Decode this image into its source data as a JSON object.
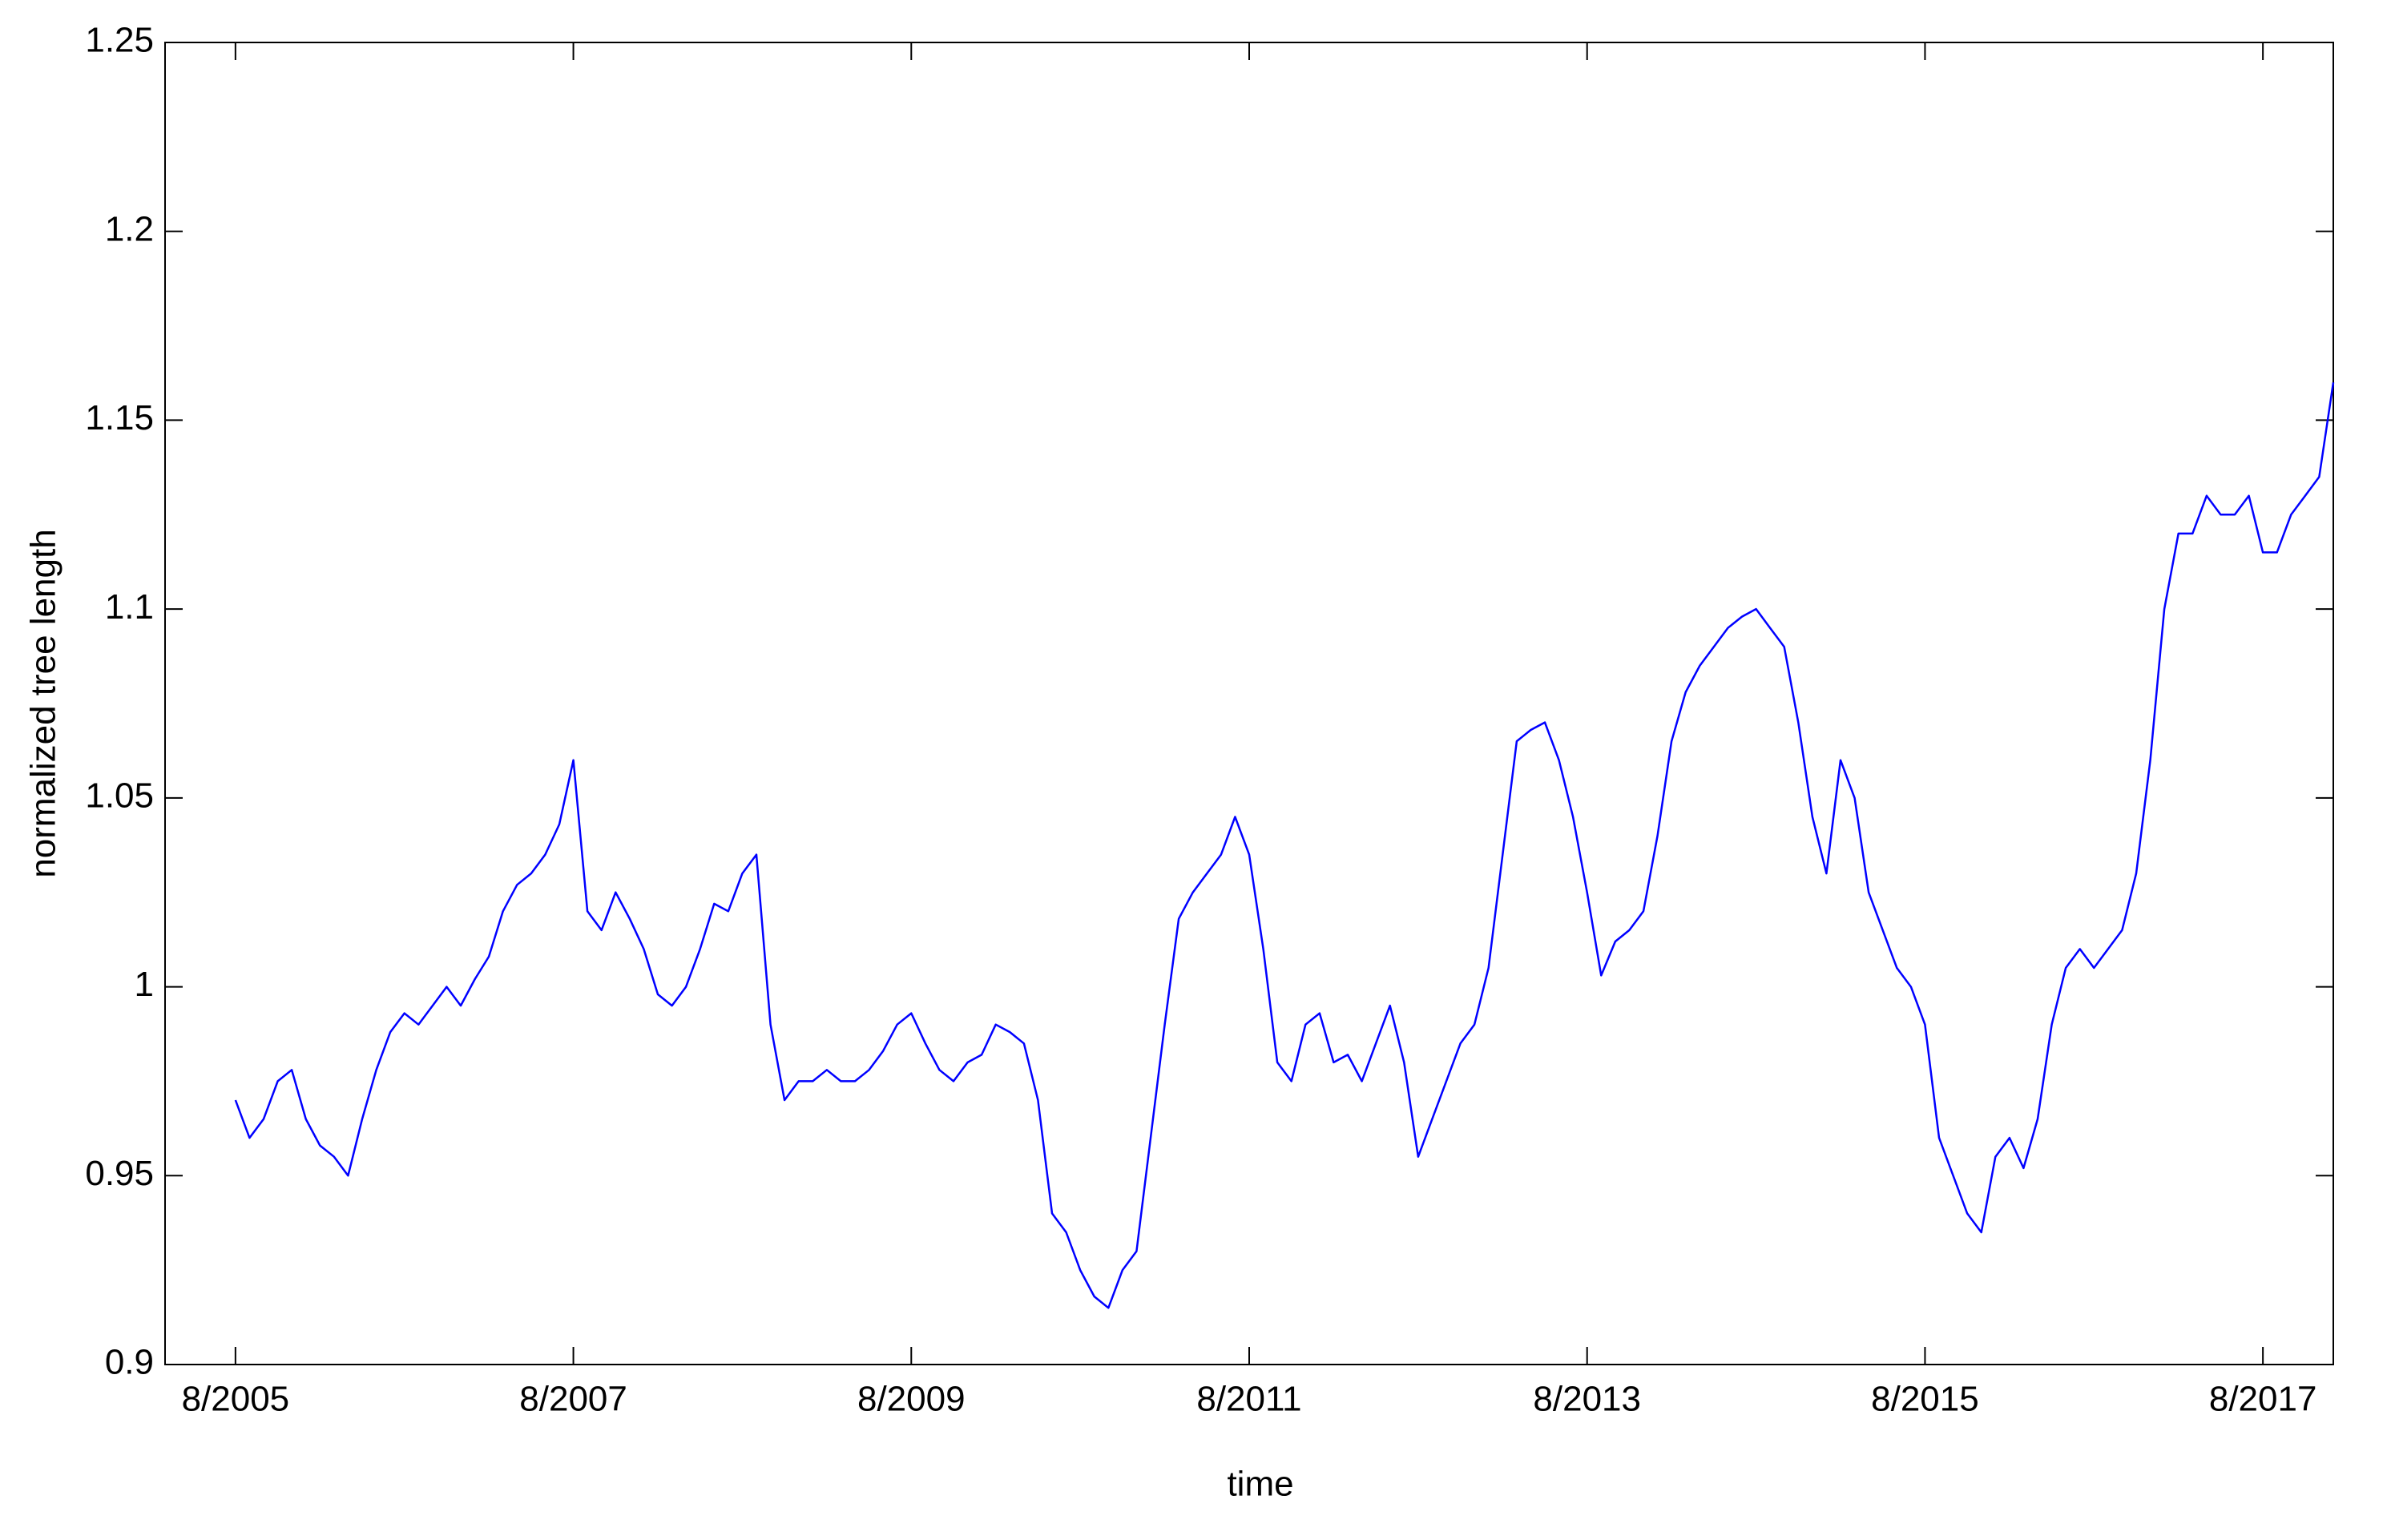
{
  "chart_data": {
    "type": "line",
    "xlabel": "time",
    "ylabel": "normalized tree length",
    "x": [
      "8/2005",
      "9/2005",
      "10/2005",
      "11/2005",
      "12/2005",
      "1/2006",
      "2/2006",
      "3/2006",
      "4/2006",
      "5/2006",
      "6/2006",
      "7/2006",
      "8/2006",
      "9/2006",
      "10/2006",
      "11/2006",
      "12/2006",
      "1/2007",
      "2/2007",
      "3/2007",
      "4/2007",
      "5/2007",
      "6/2007",
      "7/2007",
      "8/2007",
      "9/2007",
      "10/2007",
      "11/2007",
      "12/2007",
      "1/2008",
      "2/2008",
      "3/2008",
      "4/2008",
      "5/2008",
      "6/2008",
      "7/2008",
      "8/2008",
      "9/2008",
      "10/2008",
      "11/2008",
      "12/2008",
      "1/2009",
      "2/2009",
      "3/2009",
      "4/2009",
      "5/2009",
      "6/2009",
      "7/2009",
      "8/2009",
      "9/2009",
      "10/2009",
      "11/2009",
      "12/2009",
      "1/2010",
      "2/2010",
      "3/2010",
      "4/2010",
      "5/2010",
      "6/2010",
      "7/2010",
      "8/2010",
      "9/2010",
      "10/2010",
      "11/2010",
      "12/2010",
      "1/2011",
      "2/2011",
      "3/2011",
      "4/2011",
      "5/2011",
      "6/2011",
      "7/2011",
      "8/2011",
      "9/2011",
      "10/2011",
      "11/2011",
      "12/2011",
      "1/2012",
      "2/2012",
      "3/2012",
      "4/2012",
      "5/2012",
      "6/2012",
      "7/2012",
      "8/2012",
      "9/2012",
      "10/2012",
      "11/2012",
      "12/2012",
      "1/2013",
      "2/2013",
      "3/2013",
      "4/2013",
      "5/2013",
      "6/2013",
      "7/2013",
      "8/2013",
      "9/2013",
      "10/2013",
      "11/2013",
      "12/2013",
      "1/2014",
      "2/2014",
      "3/2014",
      "4/2014",
      "5/2014",
      "6/2014",
      "7/2014",
      "8/2014",
      "9/2014",
      "10/2014",
      "11/2014",
      "12/2014",
      "1/2015",
      "2/2015",
      "3/2015",
      "4/2015",
      "5/2015",
      "6/2015",
      "7/2015",
      "8/2015",
      "9/2015",
      "10/2015",
      "11/2015",
      "12/2015",
      "1/2016",
      "2/2016",
      "3/2016",
      "4/2016",
      "5/2016",
      "6/2016",
      "7/2016",
      "8/2016",
      "9/2016",
      "10/2016",
      "11/2016",
      "12/2016",
      "1/2017",
      "2/2017",
      "3/2017",
      "4/2017",
      "5/2017",
      "6/2017",
      "7/2017",
      "8/2017",
      "9/2017",
      "10/2017",
      "11/2017",
      "12/2017",
      "1/2018"
    ],
    "series": [
      {
        "name": "normalized tree length",
        "color": "#0000ff",
        "values": [
          0.97,
          0.96,
          0.965,
          0.975,
          0.978,
          0.965,
          0.958,
          0.955,
          0.95,
          0.965,
          0.978,
          0.988,
          0.993,
          0.99,
          0.995,
          1.0,
          0.995,
          1.002,
          1.008,
          1.02,
          1.027,
          1.03,
          1.035,
          1.043,
          1.06,
          1.02,
          1.015,
          1.025,
          1.018,
          1.01,
          0.998,
          0.995,
          1.0,
          1.01,
          1.022,
          1.02,
          1.03,
          1.035,
          0.99,
          0.97,
          0.975,
          0.975,
          0.978,
          0.975,
          0.975,
          0.978,
          0.983,
          0.99,
          0.993,
          0.985,
          0.978,
          0.975,
          0.98,
          0.982,
          0.99,
          0.988,
          0.985,
          0.97,
          0.94,
          0.935,
          0.925,
          0.918,
          0.915,
          0.925,
          0.93,
          0.96,
          0.99,
          1.018,
          1.025,
          1.03,
          1.035,
          1.045,
          1.035,
          1.01,
          0.98,
          0.975,
          0.99,
          0.993,
          0.98,
          0.982,
          0.975,
          0.985,
          0.995,
          0.98,
          0.955,
          0.965,
          0.975,
          0.985,
          0.99,
          1.005,
          1.035,
          1.065,
          1.068,
          1.07,
          1.06,
          1.045,
          1.025,
          1.003,
          1.012,
          1.015,
          1.02,
          1.04,
          1.065,
          1.078,
          1.085,
          1.09,
          1.095,
          1.098,
          1.1,
          1.095,
          1.09,
          1.07,
          1.045,
          1.03,
          1.06,
          1.05,
          1.025,
          1.015,
          1.005,
          1.0,
          0.99,
          0.96,
          0.95,
          0.94,
          0.935,
          0.955,
          0.96,
          0.952,
          0.965,
          0.99,
          1.005,
          1.01,
          1.005,
          1.01,
          1.015,
          1.03,
          1.06,
          1.1,
          1.12,
          1.12,
          1.13,
          1.125,
          1.125,
          1.13,
          1.115,
          1.115,
          1.125,
          1.13,
          1.135,
          1.16
        ]
      }
    ],
    "xlim": [
      "3/2005",
      "1/2018"
    ],
    "xticks": [
      "8/2005",
      "8/2007",
      "8/2009",
      "8/2011",
      "8/2013",
      "8/2015",
      "8/2017"
    ],
    "ylim": [
      0.9,
      1.25
    ],
    "yticks": [
      0.9,
      0.95,
      1,
      1.05,
      1.1,
      1.15,
      1.2,
      1.25
    ],
    "grid": false
  }
}
